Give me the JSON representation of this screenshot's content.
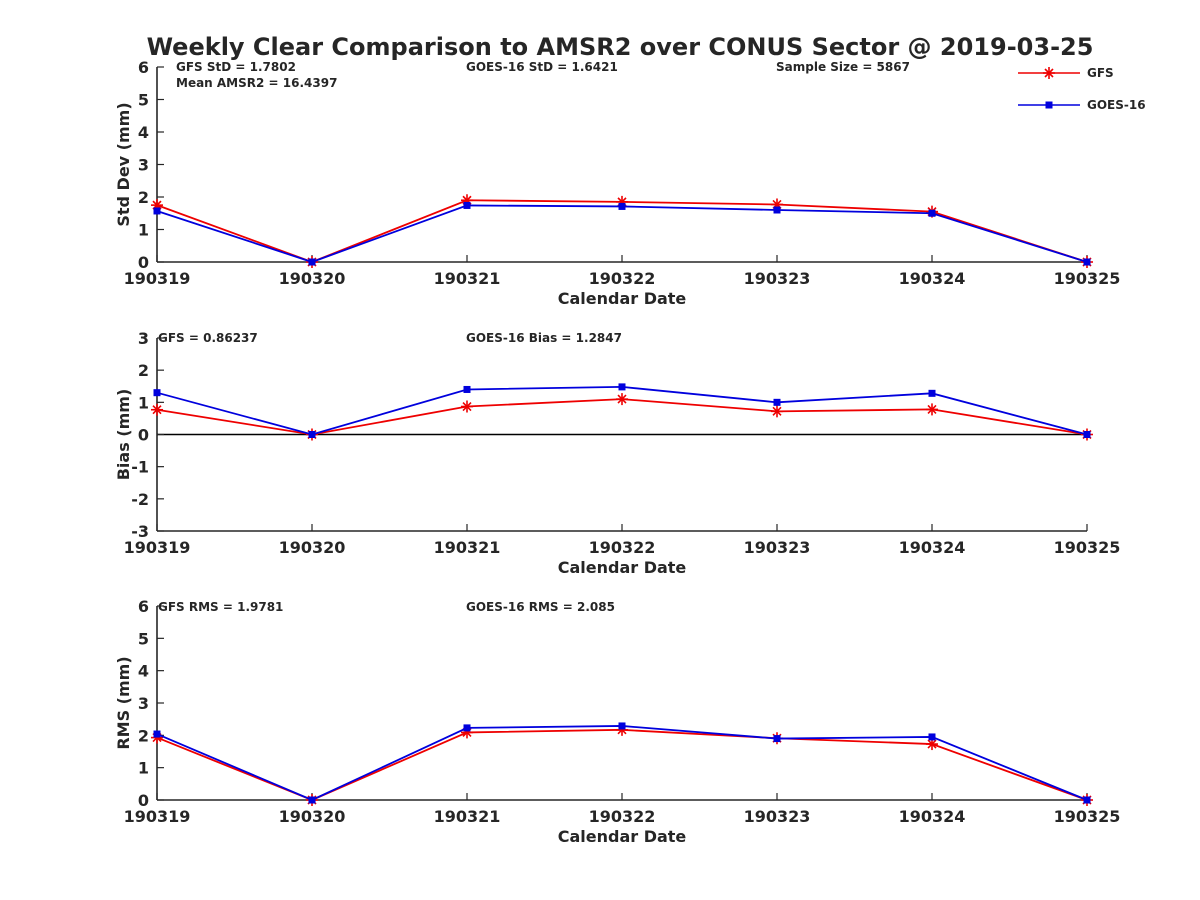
{
  "title": "Weekly Clear Comparison to AMSR2 over CONUS Sector @ 2019-03-25",
  "colors": {
    "GFS": "#ee0000",
    "GOES-16": "#0000dd",
    "axis": "#262626",
    "zero_line": "#000000"
  },
  "legend": {
    "placement": "top-right",
    "entries": [
      {
        "name": "GFS",
        "marker": "asterisk",
        "color": "#ee0000"
      },
      {
        "name": "GOES-16",
        "marker": "square",
        "color": "#0000dd"
      }
    ]
  },
  "annotations": {
    "std": [
      "GFS StD = 1.7802",
      "GOES-16 StD = 1.6421",
      "Sample Size = 5867",
      "Mean AMSR2 = 16.4397"
    ],
    "bias": [
      "GFS = 0.86237",
      "GOES-16 Bias  = 1.2847"
    ],
    "rms": [
      "GFS RMS = 1.9781",
      "GOES-16 RMS = 2.085"
    ]
  },
  "chart_data": [
    {
      "type": "line",
      "panel": "std",
      "title": "Weekly Clear Comparison to AMSR2 over CONUS Sector @ 2019-03-25",
      "xlabel": "Calendar Date",
      "ylabel": "Std Dev (mm)",
      "categories": [
        "190319",
        "190320",
        "190321",
        "190322",
        "190323",
        "190324",
        "190325"
      ],
      "ylim": [
        0,
        6
      ],
      "yticks": [
        0,
        1,
        2,
        3,
        4,
        5,
        6
      ],
      "zero_line": false,
      "grid": false,
      "series": [
        {
          "name": "GFS",
          "values": [
            1.75,
            0.0,
            1.9,
            1.85,
            1.77,
            1.55,
            0.0
          ]
        },
        {
          "name": "GOES-16",
          "values": [
            1.57,
            0.0,
            1.74,
            1.71,
            1.6,
            1.5,
            0.0
          ]
        }
      ]
    },
    {
      "type": "line",
      "panel": "bias",
      "xlabel": "Calendar Date",
      "ylabel": "Bias (mm)",
      "categories": [
        "190319",
        "190320",
        "190321",
        "190322",
        "190323",
        "190324",
        "190325"
      ],
      "ylim": [
        -3,
        3
      ],
      "yticks": [
        -3,
        -2,
        -1,
        0,
        1,
        2,
        3
      ],
      "zero_line": true,
      "grid": false,
      "series": [
        {
          "name": "GFS",
          "values": [
            0.77,
            0.0,
            0.87,
            1.1,
            0.72,
            0.78,
            0.0
          ]
        },
        {
          "name": "GOES-16",
          "values": [
            1.3,
            0.0,
            1.4,
            1.48,
            1.0,
            1.28,
            0.0
          ]
        }
      ]
    },
    {
      "type": "line",
      "panel": "rms",
      "xlabel": "Calendar Date",
      "ylabel": "RMS (mm)",
      "categories": [
        "190319",
        "190320",
        "190321",
        "190322",
        "190323",
        "190324",
        "190325"
      ],
      "ylim": [
        0,
        6
      ],
      "yticks": [
        0,
        1,
        2,
        3,
        4,
        5,
        6
      ],
      "zero_line": false,
      "grid": false,
      "series": [
        {
          "name": "GFS",
          "values": [
            1.93,
            0.0,
            2.09,
            2.17,
            1.91,
            1.73,
            0.0
          ]
        },
        {
          "name": "GOES-16",
          "values": [
            2.04,
            0.0,
            2.23,
            2.29,
            1.9,
            1.95,
            0.0
          ]
        }
      ]
    }
  ]
}
